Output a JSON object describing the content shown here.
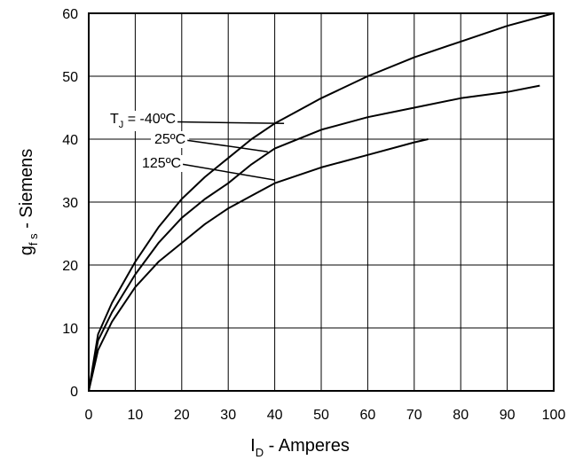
{
  "chart_data": {
    "type": "line",
    "xlabel": {
      "symbol": "I",
      "subscript": "D",
      "text": " - Amperes"
    },
    "ylabel": {
      "symbol": "g",
      "subscript": "f s",
      "text": " - Siemens"
    },
    "xlim": [
      0,
      100
    ],
    "ylim": [
      0,
      60
    ],
    "xticks": [
      0,
      10,
      20,
      30,
      40,
      50,
      60,
      70,
      80,
      90,
      100
    ],
    "yticks": [
      0,
      10,
      20,
      30,
      40,
      50,
      60
    ],
    "grid": true,
    "legend": "none",
    "series": [
      {
        "name": "-40ºC",
        "x": [
          0,
          2,
          5,
          10,
          15,
          20,
          25,
          30,
          35,
          40,
          50,
          60,
          70,
          80,
          90,
          100
        ],
        "y": [
          0,
          9,
          14,
          20.5,
          26,
          30.5,
          34,
          37,
          40,
          42.5,
          46.5,
          50,
          53,
          55.5,
          58,
          60
        ]
      },
      {
        "name": "25ºC",
        "x": [
          0,
          2,
          5,
          10,
          15,
          20,
          25,
          30,
          35,
          40,
          50,
          60,
          70,
          80,
          90,
          97
        ],
        "y": [
          0,
          8,
          12.5,
          18.5,
          23.5,
          27.5,
          30.5,
          33,
          36,
          38.5,
          41.5,
          43.5,
          45,
          46.5,
          47.5,
          48.5
        ]
      },
      {
        "name": "125ºC",
        "x": [
          0,
          2,
          5,
          10,
          15,
          20,
          25,
          30,
          35,
          40,
          50,
          60,
          70,
          73
        ],
        "y": [
          0,
          6.5,
          11,
          16.5,
          20.5,
          23.5,
          26.5,
          29,
          31,
          33,
          35.5,
          37.5,
          39.5,
          40
        ]
      }
    ],
    "annotations": [
      {
        "symbol": "T",
        "subscript": "J",
        "text": " = -40ºC",
        "points_to_x": 42,
        "points_to_y": 42.5
      },
      {
        "text": "25ºC",
        "points_to_x": 38.5,
        "points_to_y": 38
      },
      {
        "text": "125ºC",
        "points_to_x": 40,
        "points_to_y": 33.5
      }
    ]
  }
}
